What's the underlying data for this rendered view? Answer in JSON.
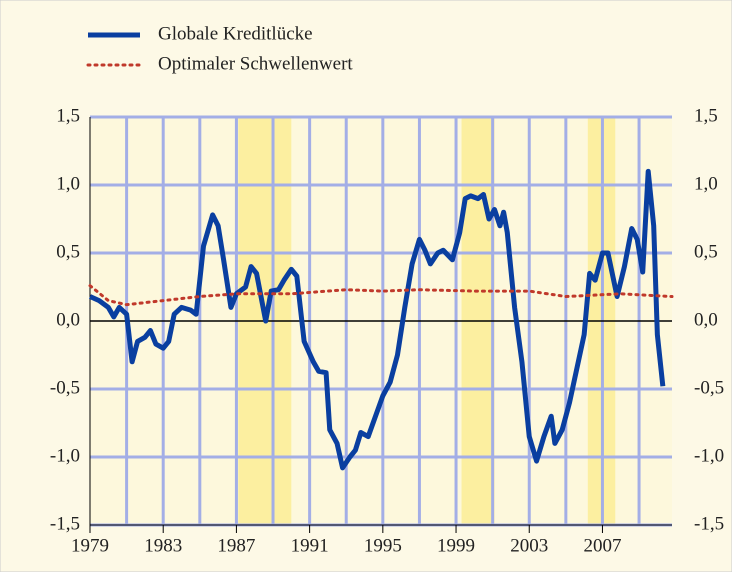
{
  "chart_data": {
    "type": "line",
    "xlim": [
      1979,
      2010.8
    ],
    "xticks": [
      1979,
      1983,
      1987,
      1991,
      1995,
      1999,
      2003,
      2007
    ],
    "xgrid": [
      1981,
      1983,
      1985,
      1987,
      1989,
      1991,
      1993,
      1995,
      1997,
      1999,
      2001,
      2003,
      2005,
      2007,
      2009
    ],
    "ylim": [
      -1.5,
      1.5
    ],
    "yticks": [
      {
        "value": 1.5,
        "label": "1,5"
      },
      {
        "value": 1.0,
        "label": "1,0"
      },
      {
        "value": 0.5,
        "label": "0,5"
      },
      {
        "value": 0,
        "label": "0,0"
      },
      {
        "value": -0.5,
        "label": "-0,5"
      },
      {
        "value": -1.0,
        "label": "-1,0"
      },
      {
        "value": -1.5,
        "label": "-1,5"
      }
    ],
    "y2lim": [
      -1.5,
      1.5
    ],
    "y2ticks": [
      {
        "value": 1.5,
        "label": "1,5"
      },
      {
        "value": 1.0,
        "label": "1,0"
      },
      {
        "value": 0.5,
        "label": "0,5"
      },
      {
        "value": 0,
        "label": "0,0"
      },
      {
        "value": -0.5,
        "label": "-0,5"
      },
      {
        "value": -1.0,
        "label": "-1,0"
      },
      {
        "value": -1.5,
        "label": "-1,5"
      }
    ],
    "grid": true,
    "shaded_periods": [
      [
        1987.1,
        1990.0
      ],
      [
        1999.3,
        2001.1
      ],
      [
        2006.2,
        2007.7
      ]
    ],
    "series": [
      {
        "name": "Globale Kreditlücke",
        "color": "#0a3fa0",
        "style": "solid",
        "x": [
          1979.0,
          1979.5,
          1980.0,
          1980.3,
          1980.6,
          1981.0,
          1981.3,
          1981.6,
          1982.0,
          1982.3,
          1982.6,
          1983.0,
          1983.3,
          1983.6,
          1984.0,
          1984.5,
          1984.8,
          1985.2,
          1985.7,
          1986.0,
          1986.3,
          1986.7,
          1987.0,
          1987.5,
          1987.8,
          1988.1,
          1988.6,
          1988.9,
          1989.3,
          1989.6,
          1990.0,
          1990.3,
          1990.7,
          1991.2,
          1991.5,
          1991.9,
          1992.1,
          1992.5,
          1992.8,
          1993.2,
          1993.5,
          1993.8,
          1994.2,
          1994.6,
          1995.0,
          1995.4,
          1995.8,
          1996.2,
          1996.6,
          1997.0,
          1997.3,
          1997.6,
          1998.0,
          1998.3,
          1998.8,
          1999.2,
          1999.5,
          1999.8,
          2000.2,
          2000.5,
          2000.8,
          2001.1,
          2001.4,
          2001.6,
          2001.8,
          2002.2,
          2002.6,
          2003.0,
          2003.4,
          2003.8,
          2004.2,
          2004.4,
          2004.8,
          2005.2,
          2005.6,
          2006.0,
          2006.3,
          2006.6,
          2007.0,
          2007.3,
          2007.8,
          2008.2,
          2008.6,
          2008.9,
          2009.2,
          2009.5,
          2009.8,
          2010.0,
          2010.3
        ],
        "values": [
          0.18,
          0.15,
          0.1,
          0.03,
          0.1,
          0.05,
          -0.3,
          -0.15,
          -0.12,
          -0.07,
          -0.17,
          -0.2,
          -0.15,
          0.05,
          0.1,
          0.08,
          0.05,
          0.55,
          0.78,
          0.7,
          0.45,
          0.1,
          0.2,
          0.25,
          0.4,
          0.35,
          0.0,
          0.22,
          0.23,
          0.3,
          0.38,
          0.33,
          -0.15,
          -0.3,
          -0.37,
          -0.38,
          -0.8,
          -0.9,
          -1.08,
          -1.0,
          -0.95,
          -0.82,
          -0.85,
          -0.7,
          -0.55,
          -0.45,
          -0.25,
          0.1,
          0.42,
          0.6,
          0.52,
          0.42,
          0.5,
          0.52,
          0.45,
          0.65,
          0.9,
          0.92,
          0.9,
          0.93,
          0.75,
          0.82,
          0.7,
          0.8,
          0.65,
          0.1,
          -0.3,
          -0.85,
          -1.03,
          -0.85,
          -0.7,
          -0.9,
          -0.8,
          -0.6,
          -0.35,
          -0.1,
          0.35,
          0.3,
          0.5,
          0.5,
          0.18,
          0.4,
          0.68,
          0.6,
          0.36,
          1.1,
          0.7,
          -0.1,
          -0.48
        ]
      },
      {
        "name": "Optimaler Schwellenwert",
        "color": "#c0392b",
        "style": "dotted",
        "x": [
          1979.0,
          1980.0,
          1981.0,
          1983.0,
          1985.0,
          1987.0,
          1990.0,
          1993.0,
          1995.0,
          1997.0,
          2000.0,
          2003.0,
          2005.0,
          2008.0,
          2010.8
        ],
        "values": [
          0.26,
          0.15,
          0.12,
          0.15,
          0.18,
          0.2,
          0.2,
          0.23,
          0.22,
          0.23,
          0.22,
          0.22,
          0.18,
          0.2,
          0.18
        ]
      }
    ]
  }
}
